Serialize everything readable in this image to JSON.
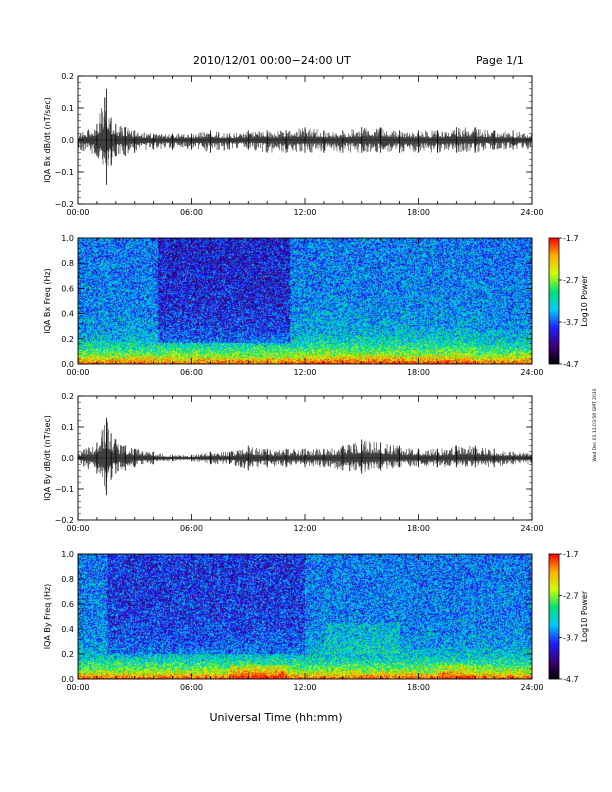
{
  "header": {
    "title": "2010/12/01  00:00−24:00 UT",
    "page": "Page 1/1"
  },
  "footer": {
    "xlabel": "Universal Time (hh:mm)",
    "stamp": "Wed Dec 01 11:03:58 GMT 2010"
  },
  "colors": {
    "trace": "#000000",
    "spectrogram_colormap": [
      "#000000",
      "#3c0078",
      "#1e1eff",
      "#00c8ff",
      "#00e07a",
      "#c8ff00",
      "#ffb000",
      "#ff0000"
    ]
  },
  "chart_data": [
    {
      "type": "line",
      "panel": "IQA Bx dB/dt",
      "ylabel": "IQA Bx dB/dt (nT/sec)",
      "xlim": [
        "00:00",
        "24:00"
      ],
      "ylim": [
        -0.2,
        0.2
      ],
      "x_ticks": [
        "00:00",
        "06:00",
        "12:00",
        "18:00",
        "24:00"
      ],
      "y_ticks": [
        "0.2",
        "0.1",
        "0.0",
        "−0.1",
        "−0.2"
      ],
      "series": [
        {
          "x": [
            "00:00",
            "01:00",
            "01:30",
            "01:45",
            "02:00",
            "02:30",
            "03:00",
            "04:00",
            "05:00",
            "06:00",
            "07:00",
            "08:00",
            "09:00",
            "10:00",
            "11:00",
            "12:00",
            "13:00",
            "14:00",
            "15:00",
            "16:00",
            "17:00",
            "18:00",
            "19:00",
            "20:00",
            "21:00",
            "22:00",
            "23:00",
            "24:00"
          ],
          "y_max": [
            0.02,
            0.05,
            0.16,
            0.07,
            0.05,
            0.04,
            0.03,
            0.02,
            0.02,
            0.02,
            0.03,
            0.02,
            0.03,
            0.03,
            0.03,
            0.04,
            0.03,
            0.03,
            0.04,
            0.04,
            0.03,
            0.03,
            0.03,
            0.04,
            0.04,
            0.03,
            0.03,
            0.02
          ],
          "y_min": [
            -0.03,
            -0.05,
            -0.14,
            -0.08,
            -0.05,
            -0.05,
            -0.04,
            -0.03,
            -0.03,
            -0.03,
            -0.04,
            -0.03,
            -0.03,
            -0.04,
            -0.04,
            -0.04,
            -0.04,
            -0.04,
            -0.04,
            -0.04,
            -0.04,
            -0.04,
            -0.04,
            -0.04,
            -0.04,
            -0.03,
            -0.03,
            -0.03
          ]
        }
      ]
    },
    {
      "type": "heatmap",
      "panel": "IQA Bx Freq",
      "ylabel": "IQA Bx Freq (Hz)",
      "xlim": [
        "00:00",
        "24:00"
      ],
      "ylim": [
        0.0,
        1.0
      ],
      "x_ticks": [
        "00:00",
        "06:00",
        "12:00",
        "18:00",
        "24:00"
      ],
      "y_ticks": [
        "1.0",
        "0.8",
        "0.6",
        "0.4",
        "0.2",
        "0.0"
      ],
      "colorbar": {
        "label": "Log10 Power",
        "range": [
          -4.7,
          -1.7
        ],
        "ticks": [
          "-1.7",
          "-2.7",
          "-3.7",
          "-4.7"
        ]
      }
    },
    {
      "type": "line",
      "panel": "IQA By dB/dt",
      "ylabel": "IQA By dB/dt (nT/sec)",
      "xlim": [
        "00:00",
        "24:00"
      ],
      "ylim": [
        -0.2,
        0.2
      ],
      "x_ticks": [
        "00:00",
        "06:00",
        "12:00",
        "18:00",
        "24:00"
      ],
      "y_ticks": [
        "0.2",
        "0.1",
        "0.0",
        "−0.1",
        "−0.2"
      ],
      "series": [
        {
          "x": [
            "00:00",
            "01:00",
            "01:30",
            "01:45",
            "02:00",
            "02:30",
            "03:00",
            "04:00",
            "05:00",
            "06:00",
            "07:00",
            "08:00",
            "09:00",
            "10:00",
            "11:00",
            "12:00",
            "13:00",
            "14:00",
            "15:00",
            "16:00",
            "17:00",
            "18:00",
            "19:00",
            "20:00",
            "21:00",
            "22:00",
            "23:00",
            "24:00"
          ],
          "y_max": [
            0.02,
            0.05,
            0.13,
            0.08,
            0.06,
            0.04,
            0.03,
            0.02,
            0.01,
            0.01,
            0.02,
            0.02,
            0.04,
            0.03,
            0.03,
            0.03,
            0.03,
            0.04,
            0.06,
            0.05,
            0.04,
            0.03,
            0.03,
            0.04,
            0.04,
            0.03,
            0.02,
            0.02
          ],
          "y_min": [
            -0.02,
            -0.05,
            -0.12,
            -0.07,
            -0.05,
            -0.04,
            -0.03,
            -0.02,
            -0.01,
            -0.01,
            -0.02,
            -0.02,
            -0.04,
            -0.03,
            -0.03,
            -0.03,
            -0.03,
            -0.04,
            -0.05,
            -0.04,
            -0.03,
            -0.03,
            -0.03,
            -0.03,
            -0.03,
            -0.03,
            -0.02,
            -0.02
          ]
        }
      ]
    },
    {
      "type": "heatmap",
      "panel": "IQA By Freq",
      "ylabel": "IQA By Freq (Hz)",
      "xlim": [
        "00:00",
        "24:00"
      ],
      "ylim": [
        0.0,
        1.0
      ],
      "x_ticks": [
        "00:00",
        "06:00",
        "12:00",
        "18:00",
        "24:00"
      ],
      "y_ticks": [
        "1.0",
        "0.8",
        "0.6",
        "0.4",
        "0.2",
        "0.0"
      ],
      "colorbar": {
        "label": "Log10 Power",
        "range": [
          -4.7,
          -1.7
        ],
        "ticks": [
          "-1.7",
          "-2.7",
          "-3.7",
          "-4.7"
        ]
      }
    }
  ]
}
